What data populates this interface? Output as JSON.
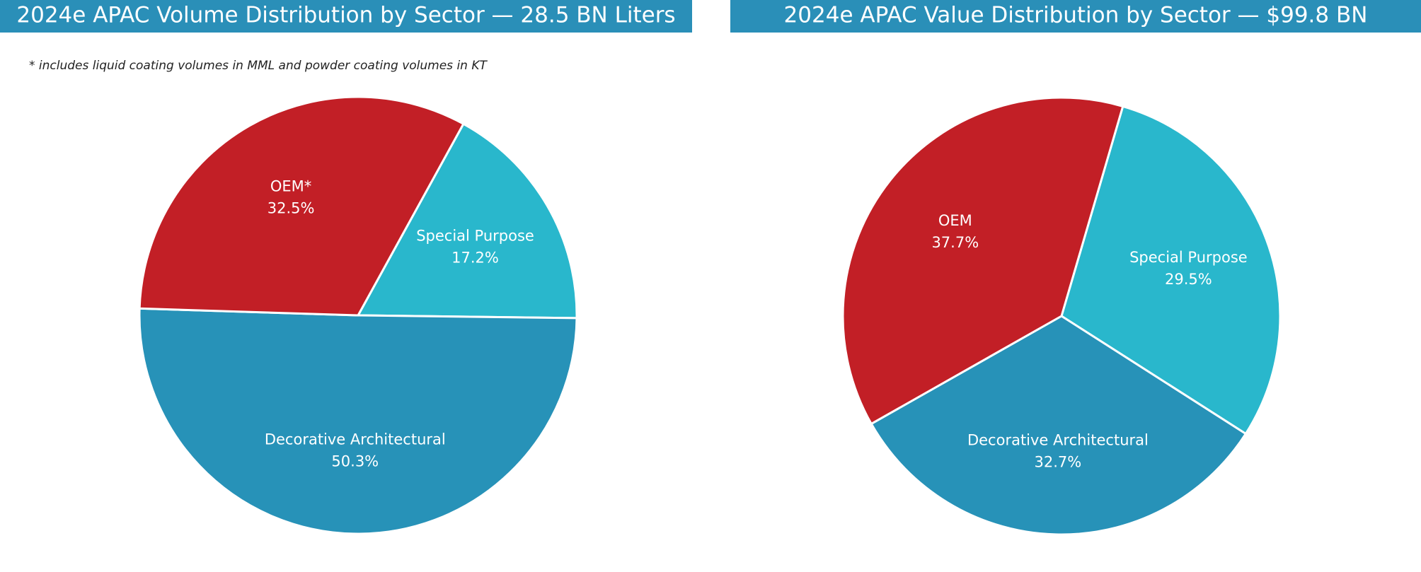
{
  "chart_data": [
    {
      "type": "pie",
      "title": "2024e APAC Volume Distribution by Sector —  28.5 BN Liters",
      "note": "* includes liquid coating volumes in MML and powder coating volumes in KT",
      "categories": [
        "Special Purpose",
        "Decorative Architectural",
        "OEM*"
      ],
      "values": [
        17.2,
        50.3,
        32.5
      ],
      "value_labels": [
        "17.2%",
        "50.3%",
        "32.5%"
      ],
      "colors": [
        "#29b7cc",
        "#2792b8",
        "#c21f26"
      ]
    },
    {
      "type": "pie",
      "title": "2024e APAC Value Distribution by Sector — $99.8 BN",
      "categories": [
        "Special Purpose",
        "Decorative Architectural",
        "OEM"
      ],
      "values": [
        29.5,
        32.7,
        37.7
      ],
      "value_labels": [
        "29.5%",
        "32.7%",
        "37.7%"
      ],
      "colors": [
        "#29b7cc",
        "#2792b8",
        "#c21f26"
      ]
    }
  ]
}
